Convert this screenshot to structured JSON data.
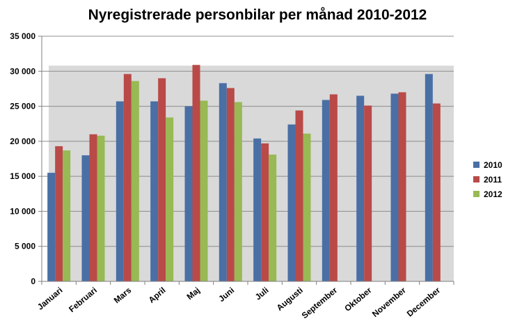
{
  "chart_data": {
    "type": "bar",
    "title": "Nyregistrerade personbilar per månad 2010-2012",
    "xlabel": "",
    "ylabel": "",
    "ylim": [
      0,
      35000
    ],
    "yticks": [
      0,
      5000,
      10000,
      15000,
      20000,
      25000,
      30000,
      35000
    ],
    "ytick_labels": [
      "0",
      "5 000",
      "10 000",
      "15 000",
      "20 000",
      "25 000",
      "30 000",
      "35 000"
    ],
    "grid": true,
    "legend_position": "right",
    "categories": [
      "Januari",
      "Februari",
      "Mars",
      "April",
      "Maj",
      "Juni",
      "Juli",
      "Augusti",
      "September",
      "Oktober",
      "November",
      "December"
    ],
    "series": [
      {
        "name": "2010",
        "color": "#4a6fa5",
        "values": [
          15500,
          18000,
          25700,
          25700,
          25000,
          28300,
          20400,
          22400,
          25900,
          26500,
          26800,
          29600
        ]
      },
      {
        "name": "2011",
        "color": "#b94a48",
        "values": [
          19300,
          21000,
          29600,
          29000,
          30900,
          27600,
          19700,
          24400,
          26700,
          25100,
          27000,
          25400
        ]
      },
      {
        "name": "2012",
        "color": "#98b954",
        "values": [
          18700,
          20800,
          28600,
          23400,
          25800,
          25600,
          18100,
          21100,
          null,
          null,
          null,
          null
        ]
      }
    ]
  }
}
